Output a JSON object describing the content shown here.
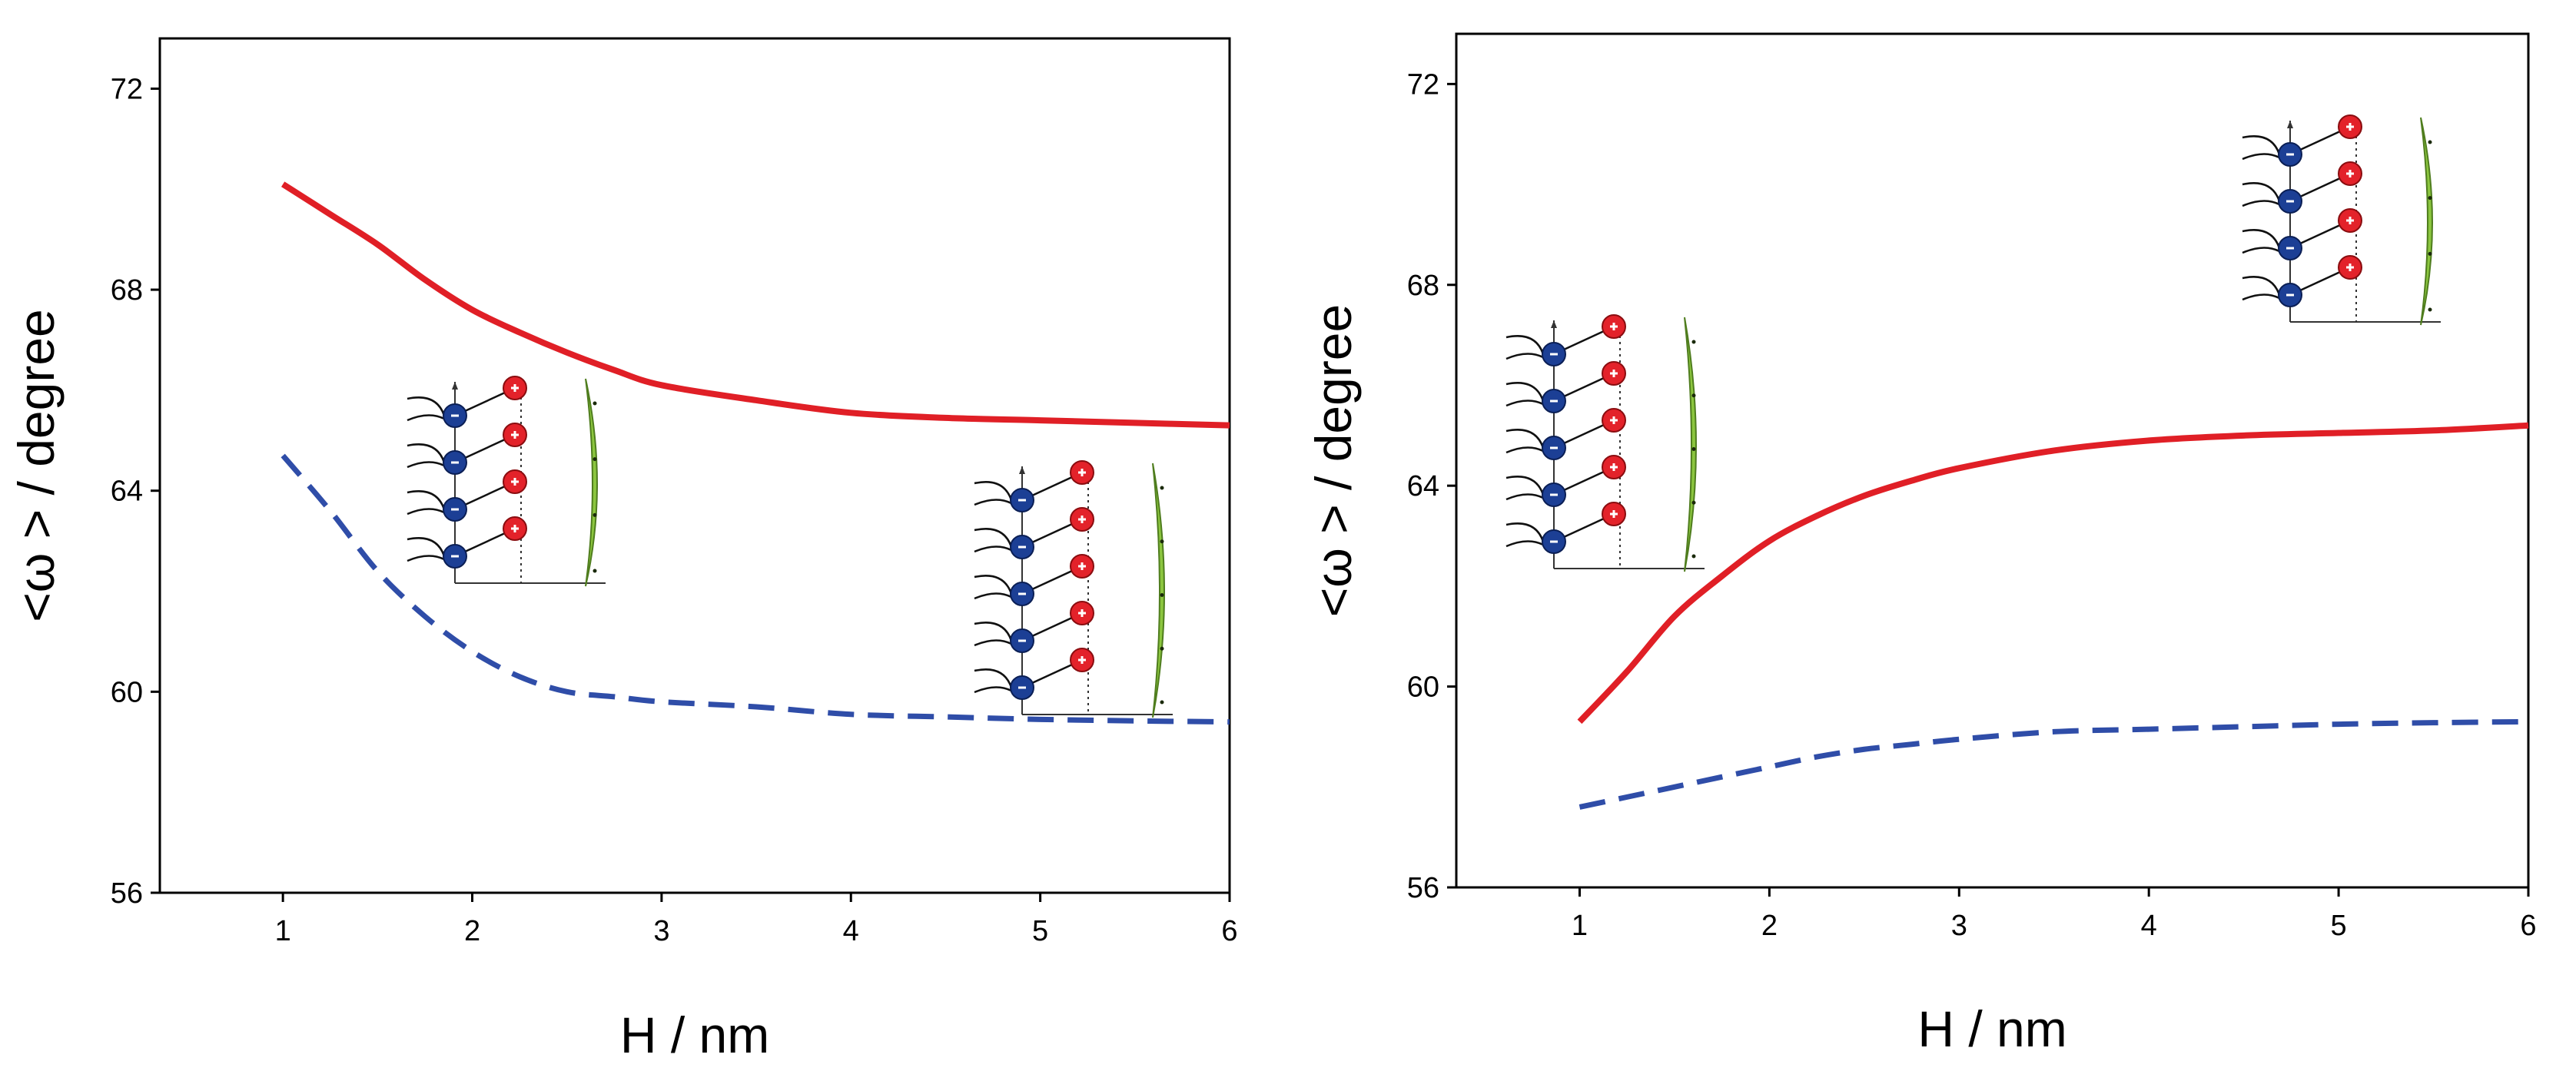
{
  "chart_data": [
    {
      "type": "line",
      "xlabel": "H / nm",
      "ylabel": "<ω > / degree",
      "xlim": [
        0.35,
        6
      ],
      "ylim": [
        56,
        73
      ],
      "xticks": [
        1,
        2,
        3,
        4,
        5,
        6
      ],
      "yticks": [
        56,
        60,
        64,
        68,
        72
      ],
      "grid": false,
      "series": [
        {
          "color": "#e01f26",
          "style": "solid",
          "x": [
            1.0,
            1.25,
            1.5,
            1.75,
            2.0,
            2.25,
            2.5,
            2.75,
            3.0,
            3.5,
            4.0,
            4.5,
            5.0,
            5.5,
            6.0
          ],
          "y": [
            70.1,
            69.5,
            68.9,
            68.2,
            67.6,
            67.15,
            66.75,
            66.4,
            66.1,
            65.8,
            65.55,
            65.45,
            65.4,
            65.35,
            65.3
          ]
        },
        {
          "color": "#2f4da8",
          "style": "dashed",
          "x": [
            1.0,
            1.25,
            1.5,
            1.75,
            2.0,
            2.25,
            2.5,
            2.75,
            3.0,
            3.5,
            4.0,
            4.5,
            5.0,
            5.5,
            6.0
          ],
          "y": [
            64.7,
            63.6,
            62.4,
            61.5,
            60.8,
            60.3,
            60.0,
            59.9,
            59.8,
            59.7,
            59.55,
            59.5,
            59.45,
            59.42,
            59.4
          ]
        }
      ]
    },
    {
      "type": "line",
      "xlabel": "H / nm",
      "ylabel": "<ω > / degree",
      "xlim": [
        0.35,
        6
      ],
      "ylim": [
        56,
        73
      ],
      "xticks": [
        1,
        2,
        3,
        4,
        5,
        6
      ],
      "yticks": [
        56,
        60,
        64,
        68,
        72
      ],
      "grid": false,
      "series": [
        {
          "color": "#e01f26",
          "style": "solid",
          "x": [
            1.0,
            1.25,
            1.5,
            1.75,
            2.0,
            2.25,
            2.5,
            2.75,
            3.0,
            3.5,
            4.0,
            4.5,
            5.0,
            5.5,
            6.0
          ],
          "y": [
            59.3,
            60.3,
            61.4,
            62.2,
            62.9,
            63.4,
            63.8,
            64.1,
            64.35,
            64.7,
            64.9,
            65.0,
            65.05,
            65.1,
            65.2
          ]
        },
        {
          "color": "#2f4da8",
          "style": "dashed",
          "x": [
            1.0,
            1.25,
            1.5,
            1.75,
            2.0,
            2.25,
            2.5,
            2.75,
            3.0,
            3.5,
            4.0,
            4.5,
            5.0,
            5.5,
            6.0
          ],
          "y": [
            57.6,
            57.8,
            58.0,
            58.2,
            58.4,
            58.6,
            58.75,
            58.85,
            58.95,
            59.1,
            59.15,
            59.2,
            59.25,
            59.28,
            59.3
          ]
        }
      ]
    }
  ]
}
